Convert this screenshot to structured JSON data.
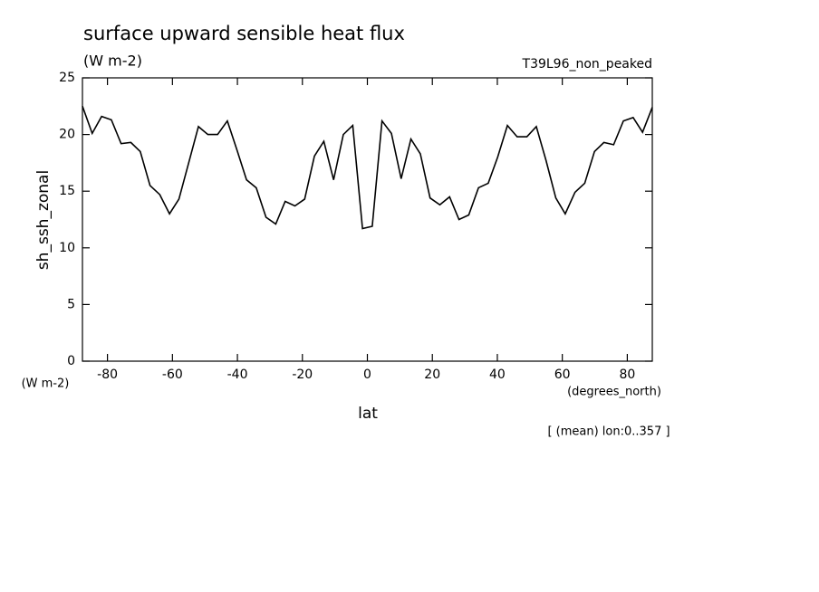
{
  "chart_data": {
    "type": "line",
    "title": "surface upward sensible heat flux",
    "subtitle": "(W m-2)",
    "experiment": "T39L96_non_peaked",
    "y_label": "sh_ssh_zonal",
    "y_unit": "(W m-2)",
    "x_label": "lat",
    "x_unit": "(degrees_north)",
    "footnote": "[ (mean) lon:0..357 ]",
    "x": [
      -87.7,
      -84.7,
      -81.8,
      -78.8,
      -75.8,
      -72.8,
      -69.9,
      -66.9,
      -63.9,
      -60.9,
      -58.0,
      -55.0,
      -52.0,
      -49.1,
      -46.1,
      -43.1,
      -40.1,
      -37.2,
      -34.2,
      -31.2,
      -28.2,
      -25.3,
      -22.3,
      -19.3,
      -16.3,
      -13.4,
      -10.4,
      -7.4,
      -4.5,
      -1.5,
      1.5,
      4.5,
      7.4,
      10.4,
      13.4,
      16.3,
      19.3,
      22.3,
      25.3,
      28.2,
      31.2,
      34.2,
      37.2,
      40.1,
      43.1,
      46.1,
      49.1,
      52.0,
      55.0,
      58.0,
      60.9,
      63.9,
      66.9,
      69.9,
      72.8,
      75.8,
      78.8,
      81.8,
      84.7,
      87.7
    ],
    "series": [
      {
        "name": "sh_ssh_zonal",
        "color": "#000000",
        "values": [
          22.5,
          20.1,
          21.6,
          21.3,
          19.2,
          19.3,
          18.5,
          15.5,
          14.7,
          13.0,
          14.3,
          17.5,
          20.7,
          20.0,
          20.0,
          21.2,
          18.6,
          16.0,
          15.3,
          12.7,
          12.1,
          14.1,
          13.7,
          14.3,
          18.1,
          19.4,
          16.0,
          20.0,
          20.8,
          11.7,
          11.9,
          21.2,
          20.1,
          16.1,
          19.6,
          18.3,
          14.4,
          13.8,
          14.5,
          12.5,
          12.9,
          15.3,
          15.7,
          18.0,
          20.8,
          19.8,
          19.8,
          20.7,
          17.7,
          14.4,
          13.0,
          14.9,
          15.7,
          18.5,
          19.3,
          19.1,
          21.2,
          21.5,
          20.2,
          22.4
        ]
      }
    ],
    "xlim": [
      -87.7,
      87.7
    ],
    "xticks": [
      -80,
      -60,
      -40,
      -20,
      0,
      20,
      40,
      60,
      80
    ],
    "ylim": [
      0,
      25
    ],
    "yticks": [
      0,
      5,
      10,
      15,
      20,
      25
    ]
  }
}
